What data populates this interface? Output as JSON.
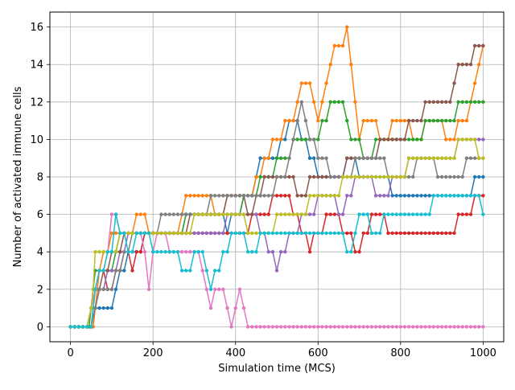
{
  "chart_data": {
    "type": "line",
    "xlabel": "Simulation time (MCS)",
    "ylabel": "Number of activated immune cells",
    "xlim": [
      -50,
      1050
    ],
    "ylim": [
      -0.8,
      16.8
    ],
    "xticks": [
      0,
      200,
      400,
      600,
      800,
      1000
    ],
    "yticks": [
      0,
      2,
      4,
      6,
      8,
      10,
      12,
      14,
      16
    ],
    "grid": true,
    "marker": "circle",
    "series": [
      {
        "color": "#1f77b4",
        "knots": [
          [
            0,
            0
          ],
          [
            40,
            0
          ],
          [
            60,
            1
          ],
          [
            100,
            1
          ],
          [
            120,
            3
          ],
          [
            200,
            5
          ],
          [
            260,
            5
          ],
          [
            300,
            6
          ],
          [
            360,
            6
          ],
          [
            380,
            5
          ],
          [
            400,
            6
          ],
          [
            440,
            7
          ],
          [
            460,
            9
          ],
          [
            480,
            9
          ],
          [
            500,
            9
          ],
          [
            520,
            10
          ],
          [
            540,
            11
          ],
          [
            570,
            10
          ],
          [
            600,
            8
          ],
          [
            620,
            8
          ],
          [
            660,
            8
          ],
          [
            680,
            9
          ],
          [
            700,
            8
          ],
          [
            750,
            8
          ],
          [
            800,
            7
          ],
          [
            840,
            7
          ],
          [
            880,
            7
          ],
          [
            920,
            7
          ],
          [
            960,
            7
          ],
          [
            1000,
            8
          ]
        ]
      },
      {
        "color": "#ff7f0e",
        "knots": [
          [
            0,
            0
          ],
          [
            55,
            0
          ],
          [
            70,
            3
          ],
          [
            100,
            5
          ],
          [
            140,
            5
          ],
          [
            170,
            6
          ],
          [
            200,
            5
          ],
          [
            260,
            5
          ],
          [
            280,
            7
          ],
          [
            320,
            7
          ],
          [
            360,
            6
          ],
          [
            400,
            7
          ],
          [
            440,
            7
          ],
          [
            480,
            9
          ],
          [
            500,
            10
          ],
          [
            540,
            11
          ],
          [
            560,
            13
          ],
          [
            580,
            13
          ],
          [
            600,
            11
          ],
          [
            620,
            13
          ],
          [
            640,
            15
          ],
          [
            660,
            15
          ],
          [
            670,
            16
          ],
          [
            700,
            10
          ],
          [
            720,
            11
          ],
          [
            760,
            10
          ],
          [
            800,
            11
          ],
          [
            840,
            10
          ],
          [
            880,
            11
          ],
          [
            920,
            10
          ],
          [
            960,
            11
          ],
          [
            1000,
            15
          ]
        ]
      },
      {
        "color": "#2ca02c",
        "knots": [
          [
            0,
            0
          ],
          [
            45,
            0
          ],
          [
            60,
            3
          ],
          [
            100,
            3
          ],
          [
            120,
            5
          ],
          [
            200,
            5
          ],
          [
            260,
            5
          ],
          [
            300,
            6
          ],
          [
            360,
            6
          ],
          [
            400,
            6
          ],
          [
            440,
            7
          ],
          [
            480,
            8
          ],
          [
            520,
            9
          ],
          [
            560,
            10
          ],
          [
            600,
            10
          ],
          [
            620,
            11
          ],
          [
            640,
            12
          ],
          [
            660,
            12
          ],
          [
            680,
            10
          ],
          [
            720,
            9
          ],
          [
            760,
            10
          ],
          [
            800,
            10
          ],
          [
            840,
            10
          ],
          [
            880,
            11
          ],
          [
            920,
            11
          ],
          [
            960,
            12
          ],
          [
            1000,
            12
          ]
        ]
      },
      {
        "color": "#d62728",
        "knots": [
          [
            0,
            0
          ],
          [
            50,
            0
          ],
          [
            70,
            3
          ],
          [
            100,
            2
          ],
          [
            130,
            4
          ],
          [
            150,
            3
          ],
          [
            180,
            5
          ],
          [
            240,
            5
          ],
          [
            280,
            5
          ],
          [
            320,
            5
          ],
          [
            360,
            5
          ],
          [
            420,
            5
          ],
          [
            460,
            6
          ],
          [
            520,
            7
          ],
          [
            560,
            5
          ],
          [
            580,
            4
          ],
          [
            600,
            5
          ],
          [
            640,
            6
          ],
          [
            700,
            4
          ],
          [
            740,
            6
          ],
          [
            780,
            5
          ],
          [
            820,
            5
          ],
          [
            860,
            5
          ],
          [
            920,
            5
          ],
          [
            960,
            6
          ],
          [
            1000,
            7
          ]
        ]
      },
      {
        "color": "#9467bd",
        "knots": [
          [
            0,
            0
          ],
          [
            50,
            0
          ],
          [
            70,
            2
          ],
          [
            100,
            3
          ],
          [
            150,
            5
          ],
          [
            200,
            5
          ],
          [
            260,
            5
          ],
          [
            320,
            5
          ],
          [
            360,
            5
          ],
          [
            400,
            6
          ],
          [
            440,
            6
          ],
          [
            480,
            4
          ],
          [
            500,
            3
          ],
          [
            540,
            5
          ],
          [
            580,
            6
          ],
          [
            620,
            7
          ],
          [
            660,
            6
          ],
          [
            700,
            8
          ],
          [
            760,
            7
          ],
          [
            800,
            8
          ],
          [
            840,
            9
          ],
          [
            880,
            9
          ],
          [
            920,
            9
          ],
          [
            960,
            10
          ],
          [
            1000,
            10
          ]
        ]
      },
      {
        "color": "#8c564b",
        "knots": [
          [
            0,
            0
          ],
          [
            50,
            0
          ],
          [
            70,
            2
          ],
          [
            100,
            4
          ],
          [
            150,
            5
          ],
          [
            200,
            5
          ],
          [
            260,
            5
          ],
          [
            320,
            6
          ],
          [
            360,
            6
          ],
          [
            400,
            7
          ],
          [
            440,
            6
          ],
          [
            480,
            8
          ],
          [
            520,
            8
          ],
          [
            560,
            7
          ],
          [
            600,
            8
          ],
          [
            640,
            8
          ],
          [
            700,
            9
          ],
          [
            740,
            9
          ],
          [
            760,
            10
          ],
          [
            800,
            10
          ],
          [
            840,
            11
          ],
          [
            880,
            12
          ],
          [
            920,
            12
          ],
          [
            940,
            14
          ],
          [
            960,
            14
          ],
          [
            1000,
            15
          ]
        ]
      },
      {
        "color": "#e377c2",
        "knots": [
          [
            0,
            0
          ],
          [
            40,
            0
          ],
          [
            60,
            2
          ],
          [
            90,
            4
          ],
          [
            100,
            6
          ],
          [
            130,
            5
          ],
          [
            170,
            5
          ],
          [
            190,
            2
          ],
          [
            210,
            5
          ],
          [
            260,
            4
          ],
          [
            300,
            4
          ],
          [
            320,
            3
          ],
          [
            340,
            1
          ],
          [
            360,
            2
          ],
          [
            380,
            1
          ],
          [
            390,
            0
          ],
          [
            410,
            2
          ],
          [
            430,
            0
          ],
          [
            500,
            0
          ],
          [
            600,
            0
          ],
          [
            700,
            0
          ],
          [
            800,
            0
          ],
          [
            900,
            0
          ],
          [
            1000,
            0
          ]
        ]
      },
      {
        "color": "#7f7f7f",
        "knots": [
          [
            0,
            0
          ],
          [
            50,
            0
          ],
          [
            70,
            2
          ],
          [
            100,
            2
          ],
          [
            130,
            4
          ],
          [
            170,
            5
          ],
          [
            200,
            5
          ],
          [
            240,
            6
          ],
          [
            280,
            6
          ],
          [
            320,
            6
          ],
          [
            360,
            7
          ],
          [
            400,
            7
          ],
          [
            440,
            7
          ],
          [
            480,
            7
          ],
          [
            520,
            8
          ],
          [
            560,
            12
          ],
          [
            580,
            10
          ],
          [
            600,
            9
          ],
          [
            640,
            8
          ],
          [
            680,
            8
          ],
          [
            700,
            9
          ],
          [
            740,
            9
          ],
          [
            780,
            8
          ],
          [
            820,
            8
          ],
          [
            860,
            9
          ],
          [
            900,
            8
          ],
          [
            940,
            8
          ],
          [
            980,
            9
          ],
          [
            1000,
            9
          ]
        ]
      },
      {
        "color": "#bcbd22",
        "knots": [
          [
            0,
            0
          ],
          [
            40,
            0
          ],
          [
            55,
            2
          ],
          [
            60,
            4
          ],
          [
            100,
            4
          ],
          [
            130,
            5
          ],
          [
            180,
            5
          ],
          [
            240,
            5
          ],
          [
            280,
            5
          ],
          [
            320,
            6
          ],
          [
            360,
            6
          ],
          [
            400,
            6
          ],
          [
            440,
            5
          ],
          [
            480,
            5
          ],
          [
            520,
            6
          ],
          [
            560,
            6
          ],
          [
            600,
            7
          ],
          [
            640,
            7
          ],
          [
            680,
            8
          ],
          [
            720,
            8
          ],
          [
            760,
            8
          ],
          [
            800,
            8
          ],
          [
            840,
            9
          ],
          [
            880,
            9
          ],
          [
            920,
            9
          ],
          [
            960,
            10
          ],
          [
            1000,
            9
          ]
        ]
      },
      {
        "color": "#17becf",
        "knots": [
          [
            0,
            0
          ],
          [
            50,
            0
          ],
          [
            60,
            2
          ],
          [
            80,
            3
          ],
          [
            100,
            4
          ],
          [
            110,
            6
          ],
          [
            140,
            4
          ],
          [
            180,
            5
          ],
          [
            200,
            4
          ],
          [
            240,
            4
          ],
          [
            280,
            3
          ],
          [
            320,
            4
          ],
          [
            340,
            2
          ],
          [
            370,
            4
          ],
          [
            400,
            5
          ],
          [
            440,
            4
          ],
          [
            480,
            5
          ],
          [
            520,
            5
          ],
          [
            560,
            5
          ],
          [
            600,
            5
          ],
          [
            640,
            5
          ],
          [
            680,
            4
          ],
          [
            700,
            6
          ],
          [
            740,
            5
          ],
          [
            780,
            6
          ],
          [
            820,
            6
          ],
          [
            860,
            6
          ],
          [
            900,
            7
          ],
          [
            940,
            7
          ],
          [
            980,
            7
          ],
          [
            1000,
            6
          ]
        ]
      }
    ]
  }
}
